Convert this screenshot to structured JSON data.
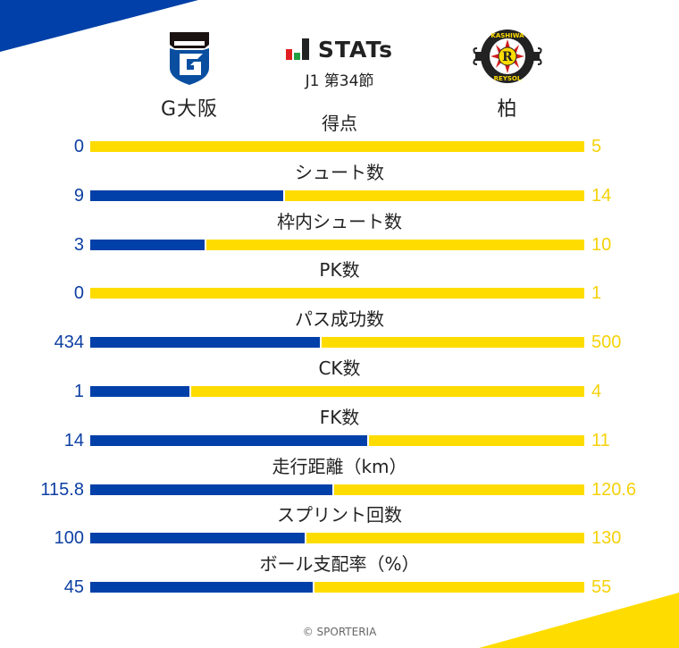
{
  "header": {
    "title": "STATs",
    "round": "J1 第34節"
  },
  "teams": {
    "home": {
      "name": "G大阪",
      "color": "#0040a8"
    },
    "away": {
      "name": "柏",
      "color": "#ffdc00",
      "logo_text_top": "KASHIWA",
      "logo_text_bottom": "REYSOL"
    }
  },
  "stats": [
    {
      "label": "得点",
      "home": "0",
      "away": "5"
    },
    {
      "label": "シュート数",
      "home": "9",
      "away": "14"
    },
    {
      "label": "枠内シュート数",
      "home": "3",
      "away": "10"
    },
    {
      "label": "PK数",
      "home": "0",
      "away": "1"
    },
    {
      "label": "パス成功数",
      "home": "434",
      "away": "500"
    },
    {
      "label": "CK数",
      "home": "1",
      "away": "4"
    },
    {
      "label": "FK数",
      "home": "14",
      "away": "11"
    },
    {
      "label": "走行距離（km）",
      "home": "115.8",
      "away": "120.6"
    },
    {
      "label": "スプリント回数",
      "home": "100",
      "away": "130"
    },
    {
      "label": "ボール支配率（%）",
      "home": "45",
      "away": "55"
    }
  ],
  "footer": {
    "credit": "© SPORTERIA"
  },
  "chart_data": {
    "type": "bar",
    "title": "STATs J1 第34節",
    "subtitle": "G大阪 vs 柏",
    "orientation": "horizontal-stacked-proportion",
    "categories": [
      "得点",
      "シュート数",
      "枠内シュート数",
      "PK数",
      "パス成功数",
      "CK数",
      "FK数",
      "走行距離（km）",
      "スプリント回数",
      "ボール支配率（%）"
    ],
    "series": [
      {
        "name": "G大阪",
        "color": "#0040a8",
        "values": [
          0,
          9,
          3,
          0,
          434,
          1,
          14,
          115.8,
          100,
          45
        ]
      },
      {
        "name": "柏",
        "color": "#ffdc00",
        "values": [
          5,
          14,
          10,
          1,
          500,
          4,
          11,
          120.6,
          130,
          55
        ]
      }
    ],
    "xlabel": "",
    "ylabel": "",
    "grid": false,
    "legend_position": "top (team logos)"
  }
}
